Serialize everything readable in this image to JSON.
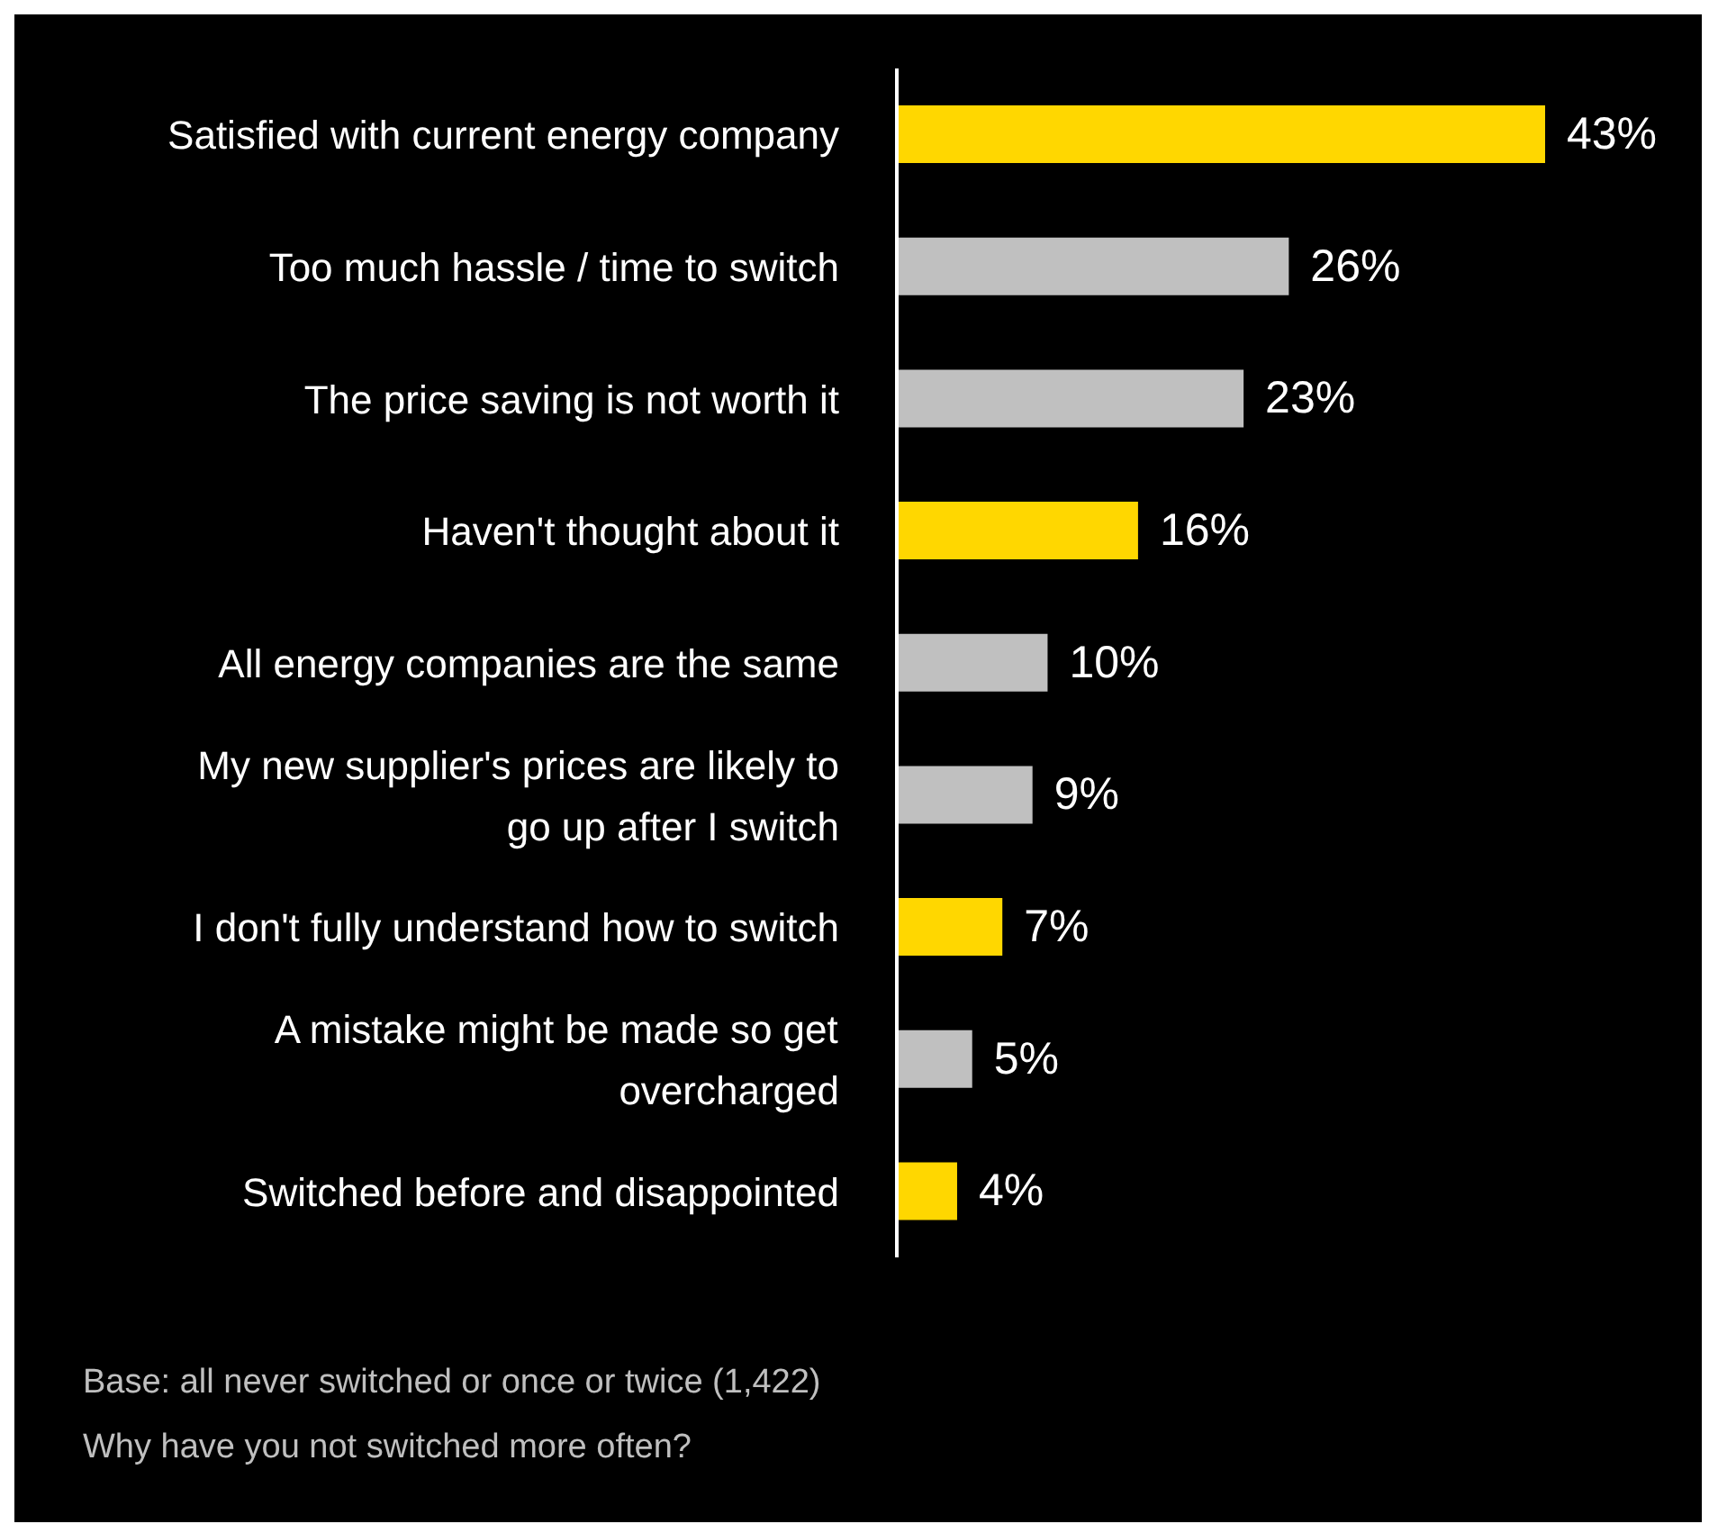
{
  "chart_data": {
    "type": "bar",
    "orientation": "horizontal",
    "categories": [
      "Satisfied with current energy company",
      "Too much hassle / time to switch",
      "The price saving is not worth it",
      "Haven't thought about it",
      "All energy companies are the same",
      "My new supplier's prices are likely to go up after I switch",
      "I don't fully understand how to switch",
      "A mistake might be made so get overcharged",
      "Switched before and disappointed"
    ],
    "values": [
      43,
      26,
      23,
      16,
      10,
      9,
      7,
      5,
      4
    ],
    "value_labels": [
      "43%",
      "26%",
      "23%",
      "16%",
      "10%",
      "9%",
      "7%",
      "5%",
      "4%"
    ],
    "colors": [
      "#ffd700",
      "#c0c0c0",
      "#c0c0c0",
      "#ffd700",
      "#c0c0c0",
      "#c0c0c0",
      "#ffd700",
      "#c0c0c0",
      "#ffd700"
    ],
    "annotations": [
      "Base: all never switched or once or twice (1,422)",
      "Why have you not switched more often?"
    ]
  }
}
